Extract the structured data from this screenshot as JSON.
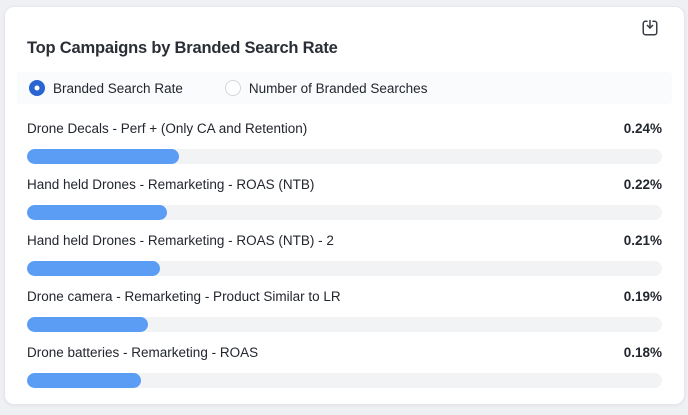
{
  "card": {
    "title": "Top Campaigns by Branded Search Rate"
  },
  "toolbar": {
    "export_icon": "download-icon"
  },
  "toggles": {
    "options": [
      {
        "label": "Branded Search Rate",
        "selected": true
      },
      {
        "label": "Number of Branded Searches",
        "selected": false
      }
    ]
  },
  "chart_data": {
    "type": "bar",
    "orientation": "horizontal",
    "title": "Top Campaigns by Branded Search Rate",
    "categories": [
      "Drone Decals - Perf + (Only CA and Retention)",
      "Hand held Drones - Remarketing - ROAS (NTB)",
      "Hand held Drones - Remarketing - ROAS (NTB) - 2",
      "Drone camera - Remarketing - Product Similar to LR",
      "Drone batteries - Remarketing - ROAS"
    ],
    "values": [
      0.24,
      0.22,
      0.21,
      0.19,
      0.18
    ],
    "value_labels": [
      "0.24%",
      "0.22%",
      "0.21%",
      "0.19%",
      "0.18%"
    ],
    "unit": "%",
    "xlim": [
      0,
      1
    ],
    "fill_percents": [
      24,
      22,
      21,
      19,
      18
    ],
    "bar_color": "#5b9df5",
    "track_color": "#f2f3f5",
    "grid": false,
    "legend": "none"
  },
  "colors": {
    "accent_blue": "#2864d2",
    "bar_blue": "#5b9df5",
    "page_background": "#eef0f4",
    "card_background": "#ffffff",
    "text_dark": "#22262e"
  }
}
